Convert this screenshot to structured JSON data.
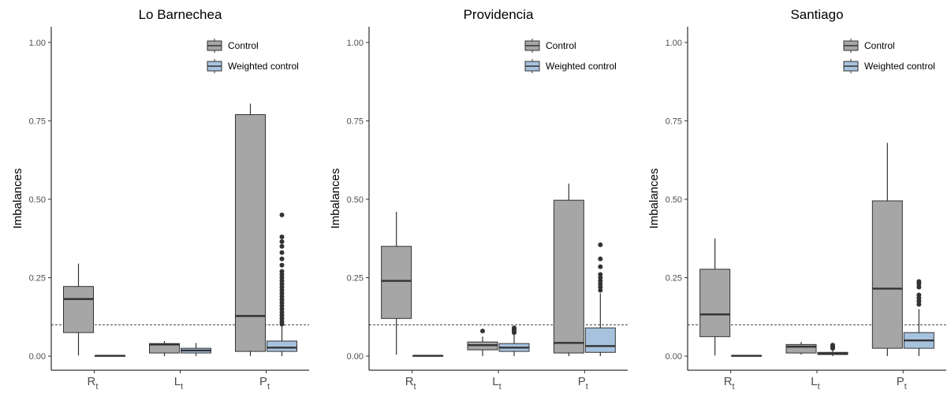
{
  "chart_data": [
    {
      "type": "box",
      "title": "Lo Barnechea",
      "ylabel": "Imbalances",
      "ylim": [
        0,
        1
      ],
      "yticks": [
        "0.00",
        "0.25",
        "0.50",
        "0.75",
        "1.00"
      ],
      "reference_line": 0.1,
      "categories": [
        {
          "main": "R",
          "sub": "t"
        },
        {
          "main": "L",
          "sub": "t"
        },
        {
          "main": "P",
          "sub": "t"
        }
      ],
      "legend": [
        "Control",
        "Weighted control"
      ],
      "series": [
        {
          "name": "Control",
          "color": "#a6a6a6",
          "boxes": [
            {
              "min": 0.002,
              "q1": 0.075,
              "median": 0.182,
              "q3": 0.222,
              "max": 0.295,
              "outliers": []
            },
            {
              "min": 0.0,
              "q1": 0.01,
              "median": 0.037,
              "q3": 0.04,
              "max": 0.048,
              "outliers": []
            },
            {
              "min": 0.0,
              "q1": 0.015,
              "median": 0.128,
              "q3": 0.77,
              "max": 0.805,
              "outliers": []
            }
          ]
        },
        {
          "name": "Weighted control",
          "color": "#a6c2de",
          "boxes": [
            {
              "min": 0.0,
              "q1": 0.0,
              "median": 0.001,
              "q3": 0.002,
              "max": 0.003,
              "outliers": []
            },
            {
              "min": 0.0,
              "q1": 0.01,
              "median": 0.018,
              "q3": 0.025,
              "max": 0.042,
              "outliers": []
            },
            {
              "min": 0.0,
              "q1": 0.015,
              "median": 0.027,
              "q3": 0.048,
              "max": 0.098,
              "outliers": [
                0.102,
                0.11,
                0.12,
                0.13,
                0.14,
                0.15,
                0.16,
                0.17,
                0.18,
                0.19,
                0.2,
                0.21,
                0.22,
                0.23,
                0.24,
                0.25,
                0.26,
                0.27,
                0.29,
                0.31,
                0.33,
                0.35,
                0.365,
                0.38,
                0.45
              ]
            }
          ]
        }
      ]
    },
    {
      "type": "box",
      "title": "Providencia",
      "ylabel": "Imbalances",
      "ylim": [
        0,
        1
      ],
      "yticks": [
        "0.00",
        "0.25",
        "0.50",
        "0.75",
        "1.00"
      ],
      "reference_line": 0.1,
      "categories": [
        {
          "main": "R",
          "sub": "t"
        },
        {
          "main": "L",
          "sub": "t"
        },
        {
          "main": "P",
          "sub": "t"
        }
      ],
      "legend": [
        "Control",
        "Weighted control"
      ],
      "series": [
        {
          "name": "Control",
          "color": "#a6a6a6",
          "boxes": [
            {
              "min": 0.005,
              "q1": 0.12,
              "median": 0.24,
              "q3": 0.35,
              "max": 0.46,
              "outliers": []
            },
            {
              "min": 0.0,
              "q1": 0.02,
              "median": 0.035,
              "q3": 0.045,
              "max": 0.062,
              "outliers": [
                0.08
              ]
            },
            {
              "min": 0.0,
              "q1": 0.01,
              "median": 0.042,
              "q3": 0.497,
              "max": 0.55,
              "outliers": []
            }
          ]
        },
        {
          "name": "Weighted control",
          "color": "#a6c2de",
          "boxes": [
            {
              "min": 0.0,
              "q1": 0.0,
              "median": 0.001,
              "q3": 0.002,
              "max": 0.003,
              "outliers": []
            },
            {
              "min": 0.0,
              "q1": 0.015,
              "median": 0.027,
              "q3": 0.04,
              "max": 0.07,
              "outliers": [
                0.075,
                0.08,
                0.085,
                0.09
              ]
            },
            {
              "min": 0.0,
              "q1": 0.012,
              "median": 0.032,
              "q3": 0.09,
              "max": 0.2,
              "outliers": [
                0.21,
                0.22,
                0.23,
                0.24,
                0.25,
                0.26,
                0.285,
                0.31,
                0.355
              ]
            }
          ]
        }
      ]
    },
    {
      "type": "box",
      "title": "Santiago",
      "ylabel": "Imbalances",
      "ylim": [
        0,
        1
      ],
      "yticks": [
        "0.00",
        "0.25",
        "0.50",
        "0.75",
        "1.00"
      ],
      "reference_line": 0.1,
      "categories": [
        {
          "main": "R",
          "sub": "t"
        },
        {
          "main": "L",
          "sub": "t"
        },
        {
          "main": "P",
          "sub": "t"
        }
      ],
      "legend": [
        "Control",
        "Weighted control"
      ],
      "series": [
        {
          "name": "Control",
          "color": "#a6a6a6",
          "boxes": [
            {
              "min": 0.002,
              "q1": 0.062,
              "median": 0.133,
              "q3": 0.277,
              "max": 0.375,
              "outliers": []
            },
            {
              "min": 0.005,
              "q1": 0.01,
              "median": 0.03,
              "q3": 0.037,
              "max": 0.045,
              "outliers": []
            },
            {
              "min": 0.0,
              "q1": 0.025,
              "median": 0.215,
              "q3": 0.495,
              "max": 0.68,
              "outliers": []
            }
          ]
        },
        {
          "name": "Weighted control",
          "color": "#a6c2de",
          "boxes": [
            {
              "min": 0.0,
              "q1": 0.0,
              "median": 0.001,
              "q3": 0.002,
              "max": 0.003,
              "outliers": []
            },
            {
              "min": 0.0,
              "q1": 0.005,
              "median": 0.008,
              "q3": 0.012,
              "max": 0.02,
              "outliers": [
                0.025,
                0.03,
                0.035
              ]
            },
            {
              "min": 0.0,
              "q1": 0.025,
              "median": 0.05,
              "q3": 0.075,
              "max": 0.15,
              "outliers": [
                0.165,
                0.175,
                0.185,
                0.195,
                0.22,
                0.23,
                0.238
              ]
            }
          ]
        }
      ]
    }
  ]
}
